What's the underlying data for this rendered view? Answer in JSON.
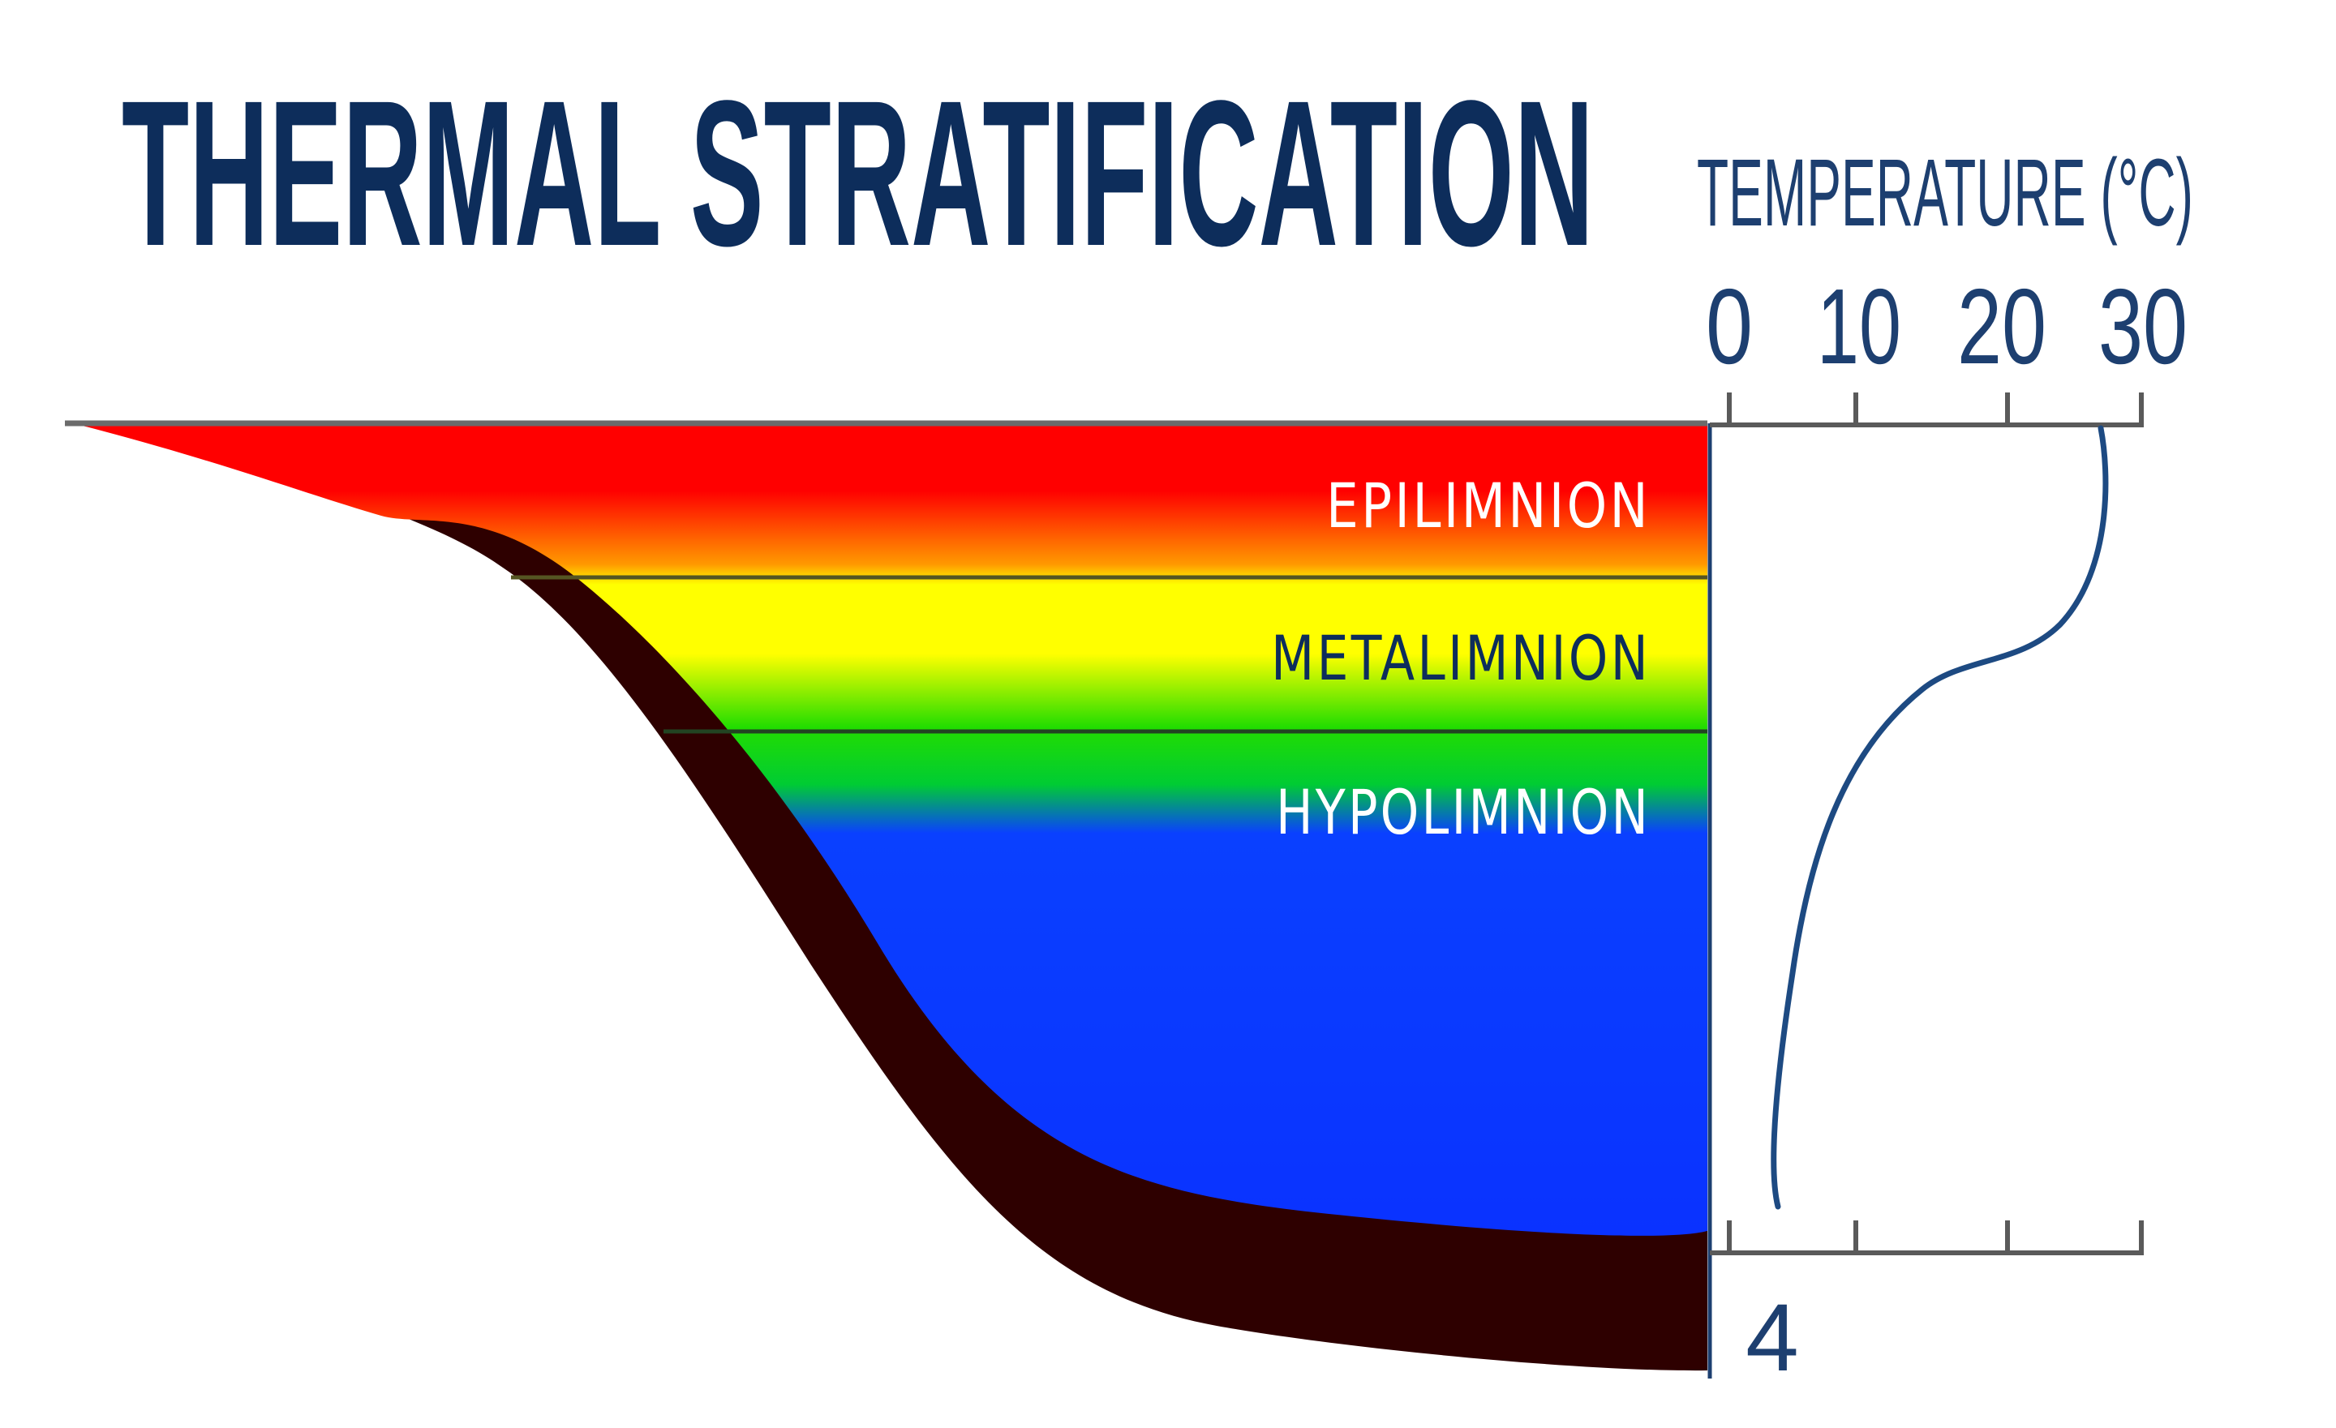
{
  "title": "THERMAL STRATIFICATION",
  "temperature_axis": {
    "label": "TEMPERATURE (°C)",
    "ticks": [
      "0",
      "10",
      "20",
      "30"
    ],
    "bottom_value": "4"
  },
  "layers": {
    "epilimnion": "EPILIMNION",
    "metalimnion": "METALIMNION",
    "hypolimnion": "HYPOLIMNION"
  },
  "colors": {
    "title": "#0d2d5b",
    "epilimnion": "#ff0000",
    "metalimnion": "#ffff00",
    "hypolimnion_top": "#00dd00",
    "hypolimnion_deep": "#0a32ff",
    "lake_bed": "#2e0000",
    "curve": "#1d4a82"
  }
}
